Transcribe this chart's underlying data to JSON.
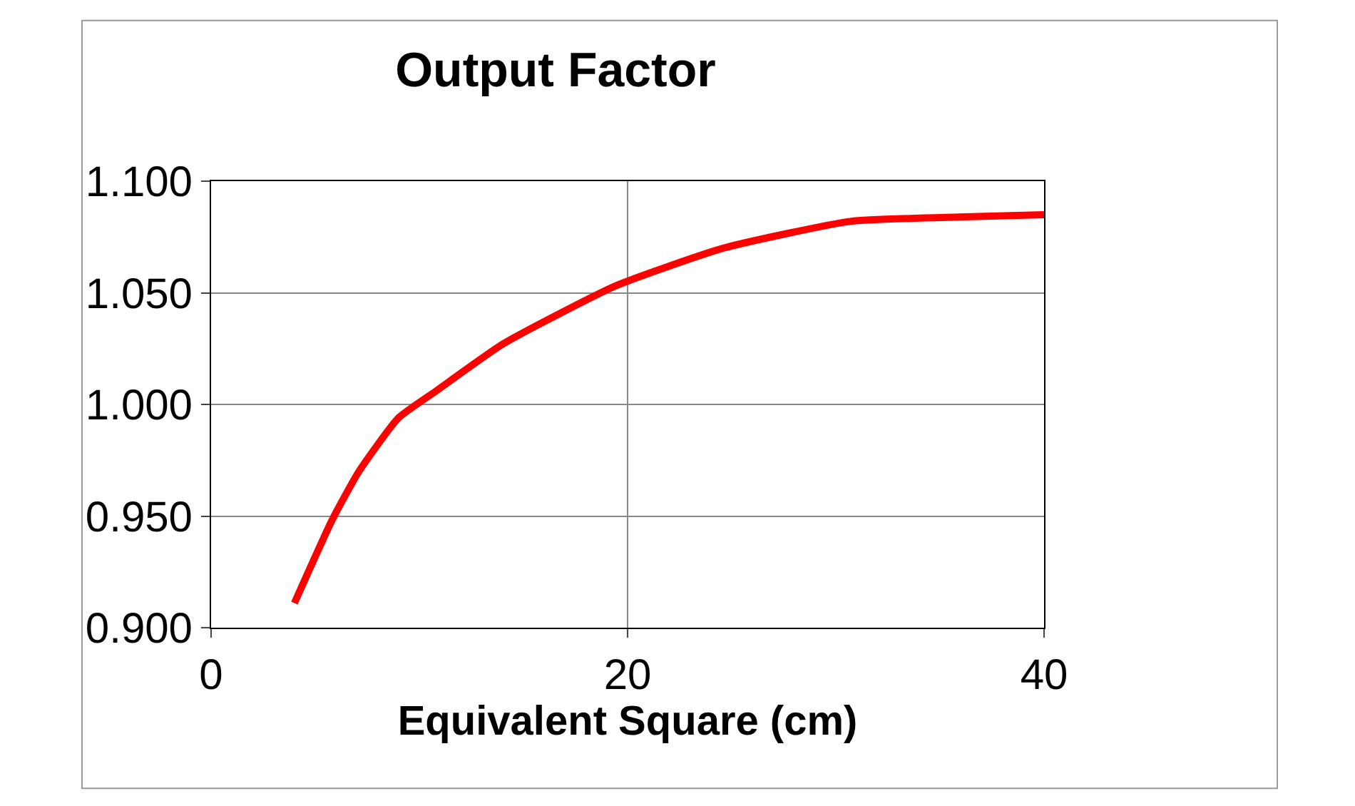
{
  "chart_data": {
    "type": "line",
    "title": "Output Factor",
    "xlabel": "Equivalent Square (cm)",
    "x": [
      4.0,
      5.8,
      7.1,
      9.0,
      10.8,
      14.0,
      19.4,
      24.6,
      30.7,
      36.2,
      40.0
    ],
    "series": [
      {
        "color": "#ff0000",
        "values": [
          0.911,
          0.948,
          0.97,
          0.994,
          1.006,
          1.027,
          1.053,
          1.07,
          1.082,
          1.084,
          1.085
        ]
      }
    ],
    "xlim": [
      0,
      40
    ],
    "xticks": [
      0,
      20,
      40
    ],
    "ylim": [
      0.9,
      1.1
    ],
    "yticks": [
      {
        "value": 0.9,
        "label": "0.900"
      },
      {
        "value": 0.95,
        "label": "0.950"
      },
      {
        "value": 1.0,
        "label": "1.000"
      },
      {
        "value": 1.05,
        "label": "1.050"
      },
      {
        "value": 1.1,
        "label": "1.100"
      }
    ],
    "grid": true,
    "marker": "none",
    "line_style": "solid"
  }
}
